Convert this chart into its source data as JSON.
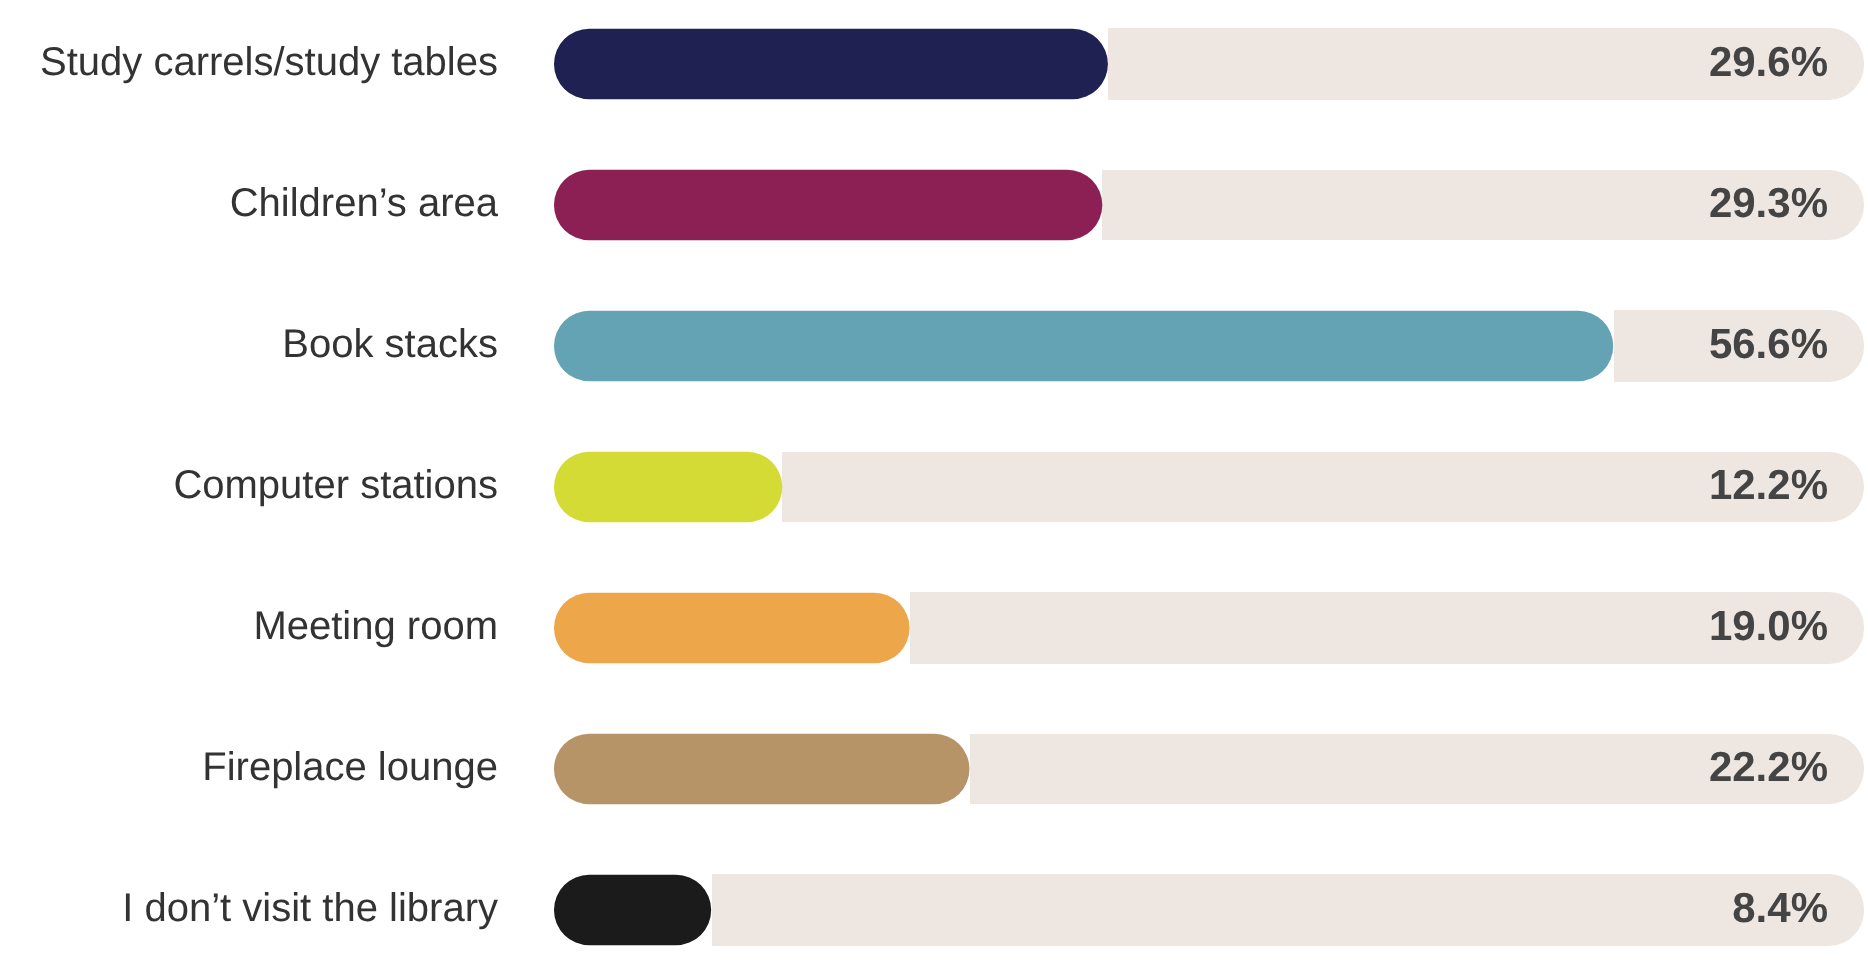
{
  "chart_data": {
    "type": "bar",
    "orientation": "horizontal",
    "categories": [
      "Study carrels/study tables",
      "Children’s area",
      "Book stacks",
      "Computer stations",
      "Meeting room",
      "Fireplace lounge",
      "I don’t visit the library"
    ],
    "values": [
      29.6,
      29.3,
      56.6,
      12.2,
      19.0,
      22.2,
      8.4
    ],
    "colors": [
      "#1f2152",
      "#8c2054",
      "#63a3b3",
      "#d4db35",
      "#eda74a",
      "#b69468",
      "#1b1b1b"
    ],
    "value_labels": [
      "29.6%",
      "29.3%",
      "56.6%",
      "12.2%",
      "19.0%",
      "22.2%",
      "8.4%"
    ],
    "legend": false
  }
}
